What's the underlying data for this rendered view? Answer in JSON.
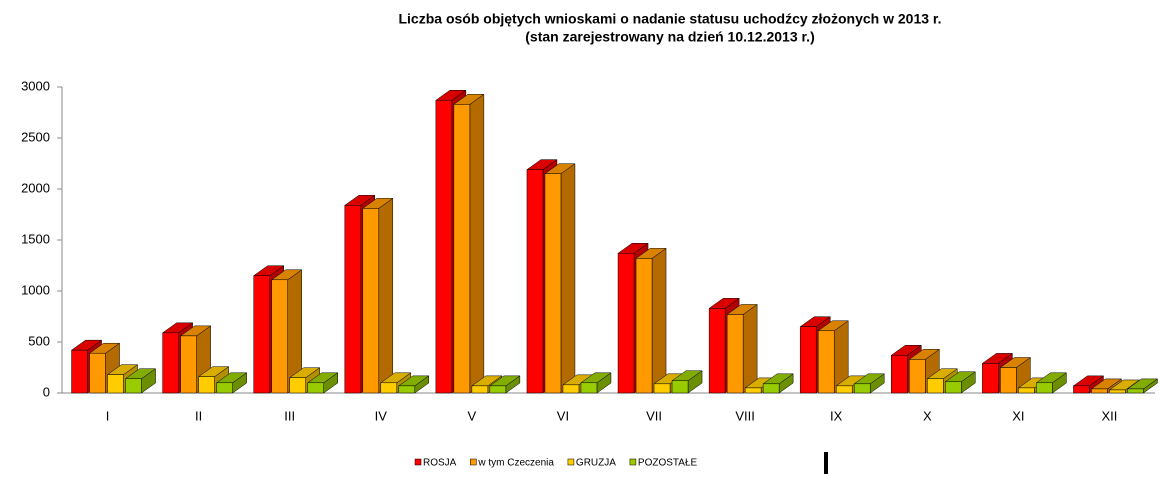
{
  "chart_data": {
    "type": "bar3d",
    "title": "Liczba osób objętych wnioskami o nadanie statusu uchodźcy złożonych w 2013  r.",
    "subtitle": "(stan zarejestrowany  na dzień 10.12.2013  r.)",
    "categories": [
      "I",
      "II",
      "III",
      "IV",
      "V",
      "VI",
      "VII",
      "VIII",
      "IX",
      "X",
      "XI",
      "XII"
    ],
    "series": [
      {
        "name": "ROSJA",
        "color": "#ff0000",
        "values": [
          420,
          590,
          1150,
          1840,
          2870,
          2190,
          1370,
          830,
          650,
          370,
          290,
          70
        ]
      },
      {
        "name": "w tym Czeczenia",
        "color": "#ff9900",
        "values": [
          390,
          560,
          1110,
          1810,
          2830,
          2150,
          1320,
          770,
          610,
          330,
          250,
          40
        ]
      },
      {
        "name": "GRUZJA",
        "color": "#ffcc00",
        "values": [
          180,
          160,
          150,
          100,
          70,
          80,
          90,
          50,
          70,
          140,
          50,
          30
        ]
      },
      {
        "name": "POZOSTAŁE",
        "color": "#99cc00",
        "values": [
          140,
          100,
          100,
          70,
          70,
          100,
          120,
          90,
          90,
          110,
          100,
          40
        ]
      }
    ],
    "ylim": [
      0,
      3000
    ],
    "yticks": [
      0,
      500,
      1000,
      1500,
      2000,
      2500,
      3000
    ],
    "legend": "bottom"
  }
}
